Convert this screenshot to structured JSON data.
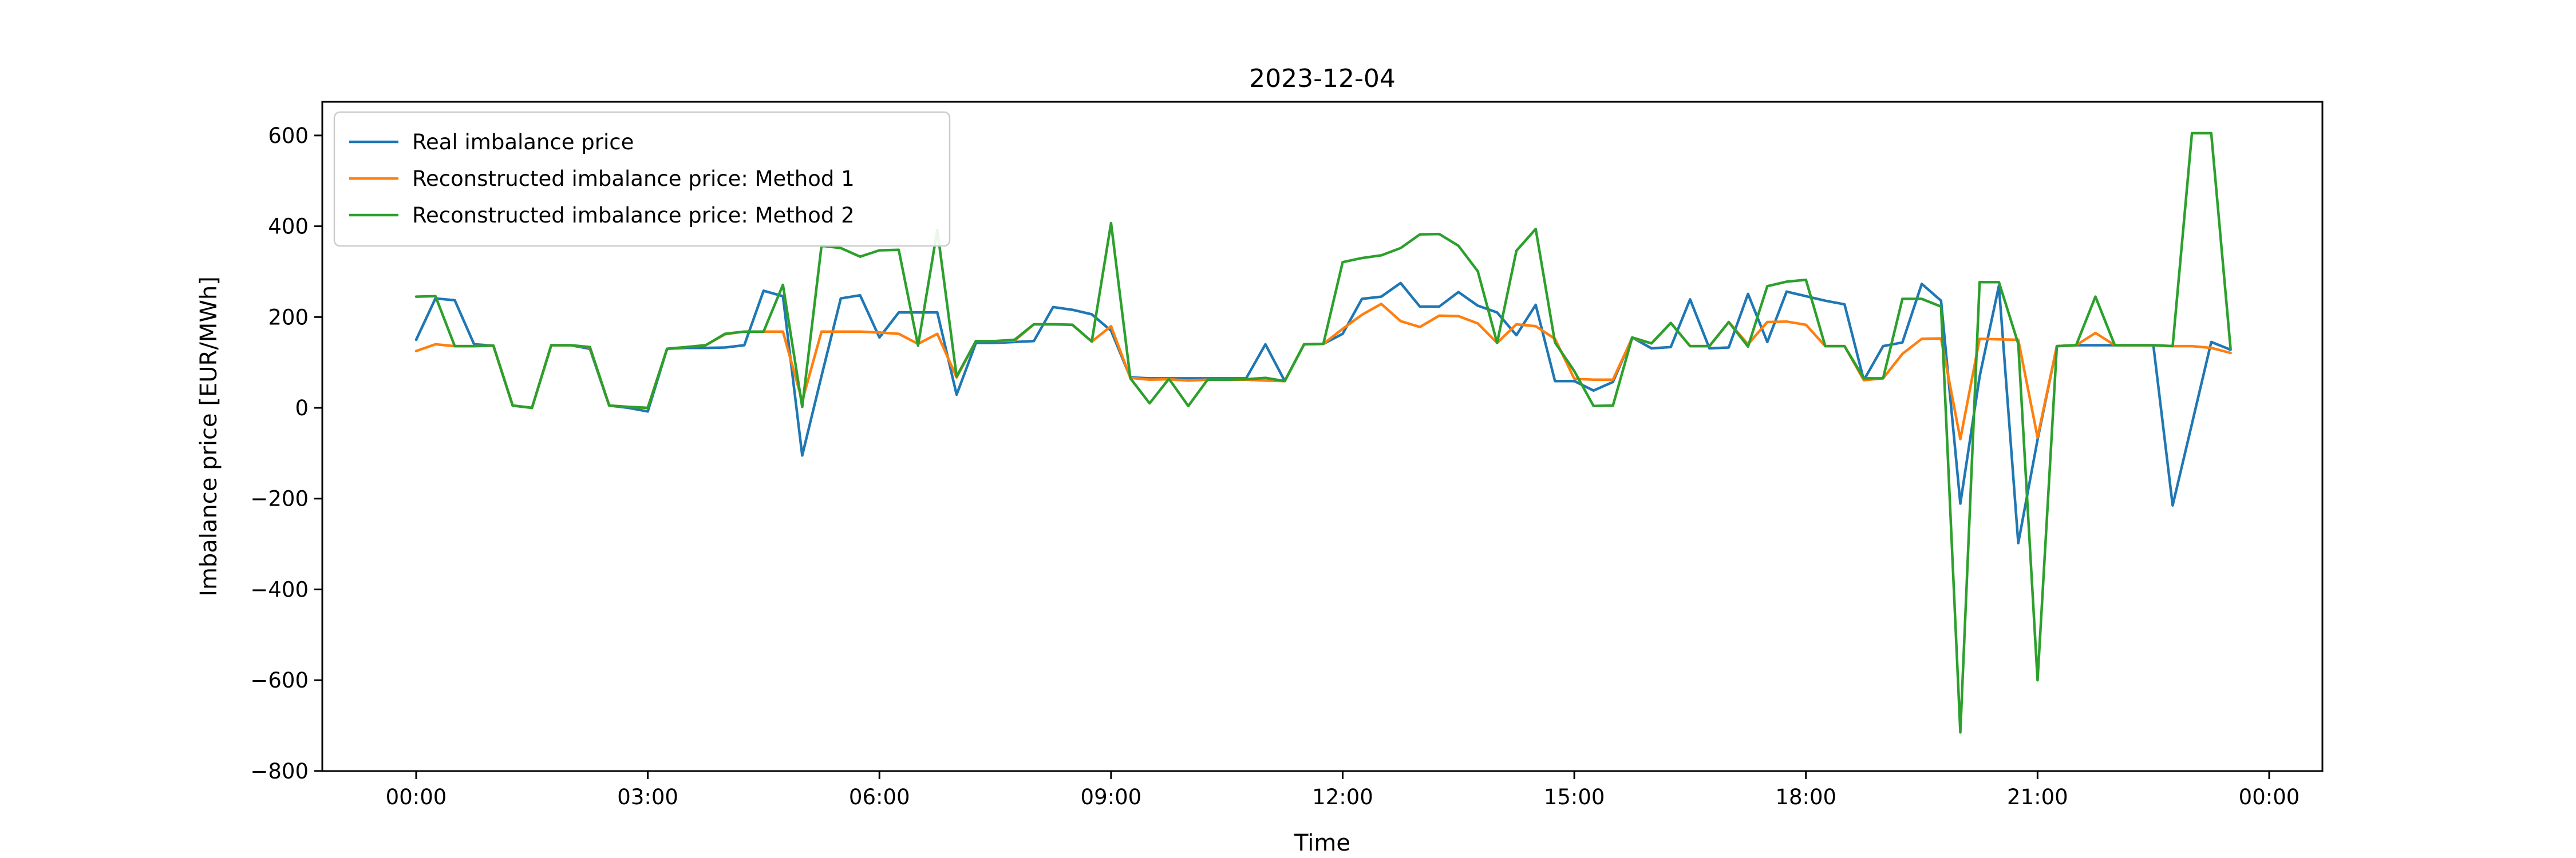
{
  "figure": {
    "title": "2023-12-04",
    "xlabel": "Time",
    "ylabel": "Imbalance price [EUR/MWh]",
    "background_color": "#ffffff",
    "spine_color": "#000000"
  },
  "legend": {
    "position": "upper left",
    "border_color": "#cccccc",
    "background_color": "#ffffff",
    "entries": [
      {
        "label": "Real imbalance price",
        "color": "#1f77b4"
      },
      {
        "label": "Reconstructed imbalance price: Method 1",
        "color": "#ff7f0e"
      },
      {
        "label": "Reconstructed imbalance price: Method 2",
        "color": "#2ca02c"
      }
    ]
  },
  "chart_data": {
    "type": "line",
    "title": "2023-12-04",
    "xlabel": "Time",
    "ylabel": "Imbalance price [EUR/MWh]",
    "grid": false,
    "ylim": [
      -815,
      675
    ],
    "y_ticks": [
      600,
      400,
      200,
      0,
      -200,
      -400,
      -600,
      -800
    ],
    "y_tick_labels": [
      "600",
      "400",
      "200",
      "0",
      "−200",
      "−400",
      "−600",
      "−800"
    ],
    "x_tick_hours": [
      0,
      3,
      6,
      9,
      12,
      15,
      18,
      21,
      24
    ],
    "x_tick_labels": [
      "00:00",
      "03:00",
      "06:00",
      "09:00",
      "12:00",
      "15:00",
      "18:00",
      "21:00",
      "00:00"
    ],
    "time_step_minutes": 15,
    "times": [
      "00:00",
      "00:15",
      "00:30",
      "00:45",
      "01:00",
      "01:15",
      "01:30",
      "01:45",
      "02:00",
      "02:15",
      "02:30",
      "02:45",
      "03:00",
      "03:15",
      "03:30",
      "03:45",
      "04:00",
      "04:15",
      "04:30",
      "04:45",
      "05:00",
      "05:15",
      "05:30",
      "05:45",
      "06:00",
      "06:15",
      "06:30",
      "06:45",
      "07:00",
      "07:15",
      "07:30",
      "07:45",
      "08:00",
      "08:15",
      "08:30",
      "08:45",
      "09:00",
      "09:15",
      "09:30",
      "09:45",
      "10:00",
      "10:15",
      "10:30",
      "10:45",
      "11:00",
      "11:15",
      "11:30",
      "11:45",
      "12:00",
      "12:15",
      "12:30",
      "12:45",
      "13:00",
      "13:15",
      "13:30",
      "13:45",
      "14:00",
      "14:15",
      "14:30",
      "14:45",
      "15:00",
      "15:15",
      "15:30",
      "15:45",
      "16:00",
      "16:15",
      "16:30",
      "16:45",
      "17:00",
      "17:15",
      "17:30",
      "17:45",
      "18:00",
      "18:15",
      "18:30",
      "18:45",
      "19:00",
      "19:15",
      "19:30",
      "19:45",
      "20:00",
      "20:15",
      "20:30",
      "20:45",
      "21:00",
      "21:15",
      "21:30",
      "21:45",
      "22:00",
      "22:15",
      "22:30",
      "22:45",
      "23:00",
      "23:15",
      "23:30"
    ],
    "series": [
      {
        "name": "Real imbalance price",
        "color": "#1f77b4",
        "values": [
          150,
          241,
          237,
          140,
          137,
          5,
          0,
          138,
          138,
          130,
          5,
          0,
          -8,
          130,
          132,
          132,
          133,
          138,
          258,
          246,
          -105,
          70,
          241,
          248,
          155,
          210,
          210,
          210,
          29,
          143,
          143,
          145,
          147,
          222,
          216,
          206,
          170,
          67,
          65,
          65,
          65,
          65,
          65,
          65,
          140,
          59,
          140,
          141,
          163,
          240,
          245,
          275,
          223,
          223,
          255,
          225,
          210,
          160,
          227,
          59,
          59,
          38,
          57,
          155,
          131,
          134,
          239,
          131,
          133,
          251,
          145,
          256,
          246,
          236,
          228,
          61,
          136,
          144,
          273,
          236,
          -211,
          69,
          269,
          -298,
          -70,
          136,
          138,
          138,
          138,
          138,
          138,
          -215,
          -35,
          145,
          128
        ]
      },
      {
        "name": "Reconstructed imbalance price: Method 1",
        "color": "#ff7f0e",
        "values": [
          125,
          140,
          136,
          136,
          137,
          5,
          0,
          138,
          138,
          133,
          5,
          2,
          0,
          130,
          134,
          138,
          162,
          168,
          168,
          168,
          15,
          168,
          168,
          168,
          166,
          163,
          141,
          163,
          67,
          147,
          147,
          148,
          184,
          184,
          183,
          146,
          180,
          66,
          62,
          63,
          60,
          62,
          62,
          62,
          60,
          59,
          140,
          141,
          174,
          205,
          229,
          191,
          178,
          203,
          202,
          186,
          143,
          184,
          180,
          152,
          64,
          62,
          62,
          154,
          142,
          187,
          136,
          136,
          189,
          140,
          189,
          190,
          183,
          136,
          136,
          61,
          65,
          119,
          152,
          153,
          -69,
          152,
          151,
          150,
          -65,
          136,
          138,
          165,
          138,
          138,
          138,
          136,
          136,
          132,
          121
        ]
      },
      {
        "name": "Reconstructed imbalance price: Method 2",
        "color": "#2ca02c",
        "values": [
          245,
          246,
          136,
          136,
          137,
          5,
          0,
          138,
          138,
          134,
          5,
          2,
          0,
          130,
          134,
          138,
          163,
          168,
          168,
          271,
          2,
          357,
          352,
          333,
          347,
          348,
          137,
          392,
          69,
          147,
          147,
          150,
          184,
          184,
          183,
          146,
          407,
          65,
          10,
          64,
          4,
          62,
          62,
          63,
          66,
          59,
          140,
          141,
          321,
          330,
          336,
          352,
          382,
          383,
          357,
          301,
          143,
          346,
          394,
          144,
          81,
          4,
          5,
          155,
          142,
          187,
          136,
          136,
          189,
          135,
          268,
          278,
          282,
          136,
          136,
          65,
          65,
          240,
          240,
          223,
          -715,
          277,
          277,
          141,
          -600,
          136,
          138,
          245,
          138,
          138,
          138,
          136,
          605,
          605,
          130
        ]
      }
    ]
  }
}
